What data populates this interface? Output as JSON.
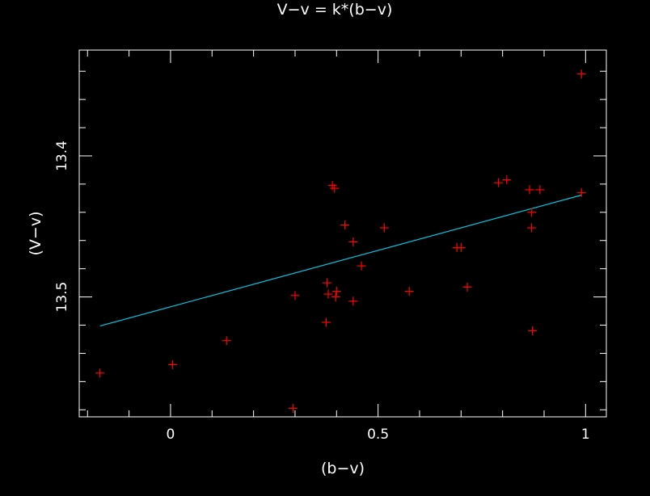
{
  "chart_data": {
    "type": "scatter",
    "title": "V−v = k*(b−v)",
    "xlabel": "(b−v)",
    "ylabel": "(V−v)",
    "xlim": [
      -0.22,
      1.05
    ],
    "ylim": [
      13.585,
      13.325
    ],
    "y_inverted": true,
    "x_major_ticks": [
      0,
      0.5,
      1
    ],
    "x_tick_labels": [
      "0",
      "0.5",
      "1"
    ],
    "y_major_ticks": [
      13.4,
      13.5
    ],
    "y_tick_labels": [
      "13.4",
      "13.5"
    ],
    "grid": false,
    "colors": {
      "background": "#000000",
      "frame": "#ffffff",
      "points": "#ff0000",
      "fit_line": "#00c8e0"
    },
    "series": [
      {
        "marker": "+",
        "x": [
          -0.17,
          0.005,
          0.135,
          0.295,
          0.3,
          0.375,
          0.377,
          0.38,
          0.39,
          0.395,
          0.398,
          0.4,
          0.42,
          0.44,
          0.44,
          0.46,
          0.515,
          0.575,
          0.69,
          0.7,
          0.715,
          0.79,
          0.81,
          0.865,
          0.87,
          0.87,
          0.872,
          0.89,
          0.99,
          0.99
        ],
        "y": [
          13.554,
          13.548,
          13.531,
          13.579,
          13.499,
          13.518,
          13.49,
          13.498,
          13.421,
          13.423,
          13.5,
          13.496,
          13.449,
          13.503,
          13.461,
          13.478,
          13.451,
          13.496,
          13.465,
          13.465,
          13.493,
          13.419,
          13.417,
          13.424,
          13.44,
          13.451,
          13.524,
          13.424,
          13.426,
          13.342
        ]
      }
    ],
    "fit_line": {
      "slope": -0.08,
      "intercept": 13.507,
      "x_range": [
        -0.17,
        0.99
      ]
    }
  }
}
